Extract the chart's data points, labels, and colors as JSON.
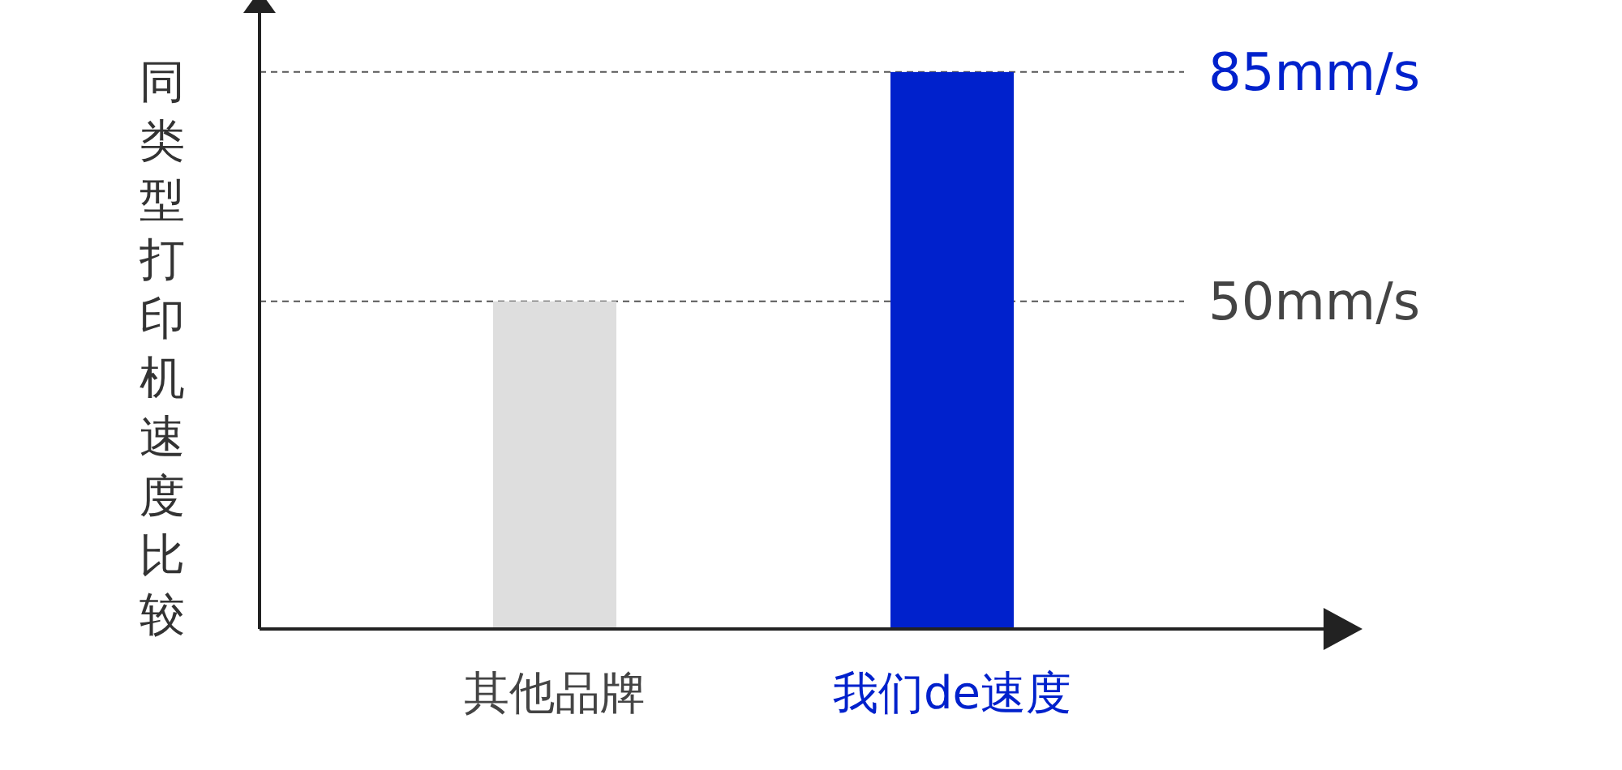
{
  "chart_data": {
    "type": "bar",
    "ylabel": "同类型打印机速度比较",
    "categories": [
      "其他品牌",
      "我们de速度"
    ],
    "values": [
      50,
      85
    ],
    "colors": [
      "#dedede",
      "#0021cc"
    ],
    "ylim": [
      0,
      95
    ],
    "yticks": [
      {
        "value": 50,
        "label": "50mm/s"
      },
      {
        "value": 85,
        "label": "85mm/s"
      }
    ],
    "grid": "y"
  }
}
